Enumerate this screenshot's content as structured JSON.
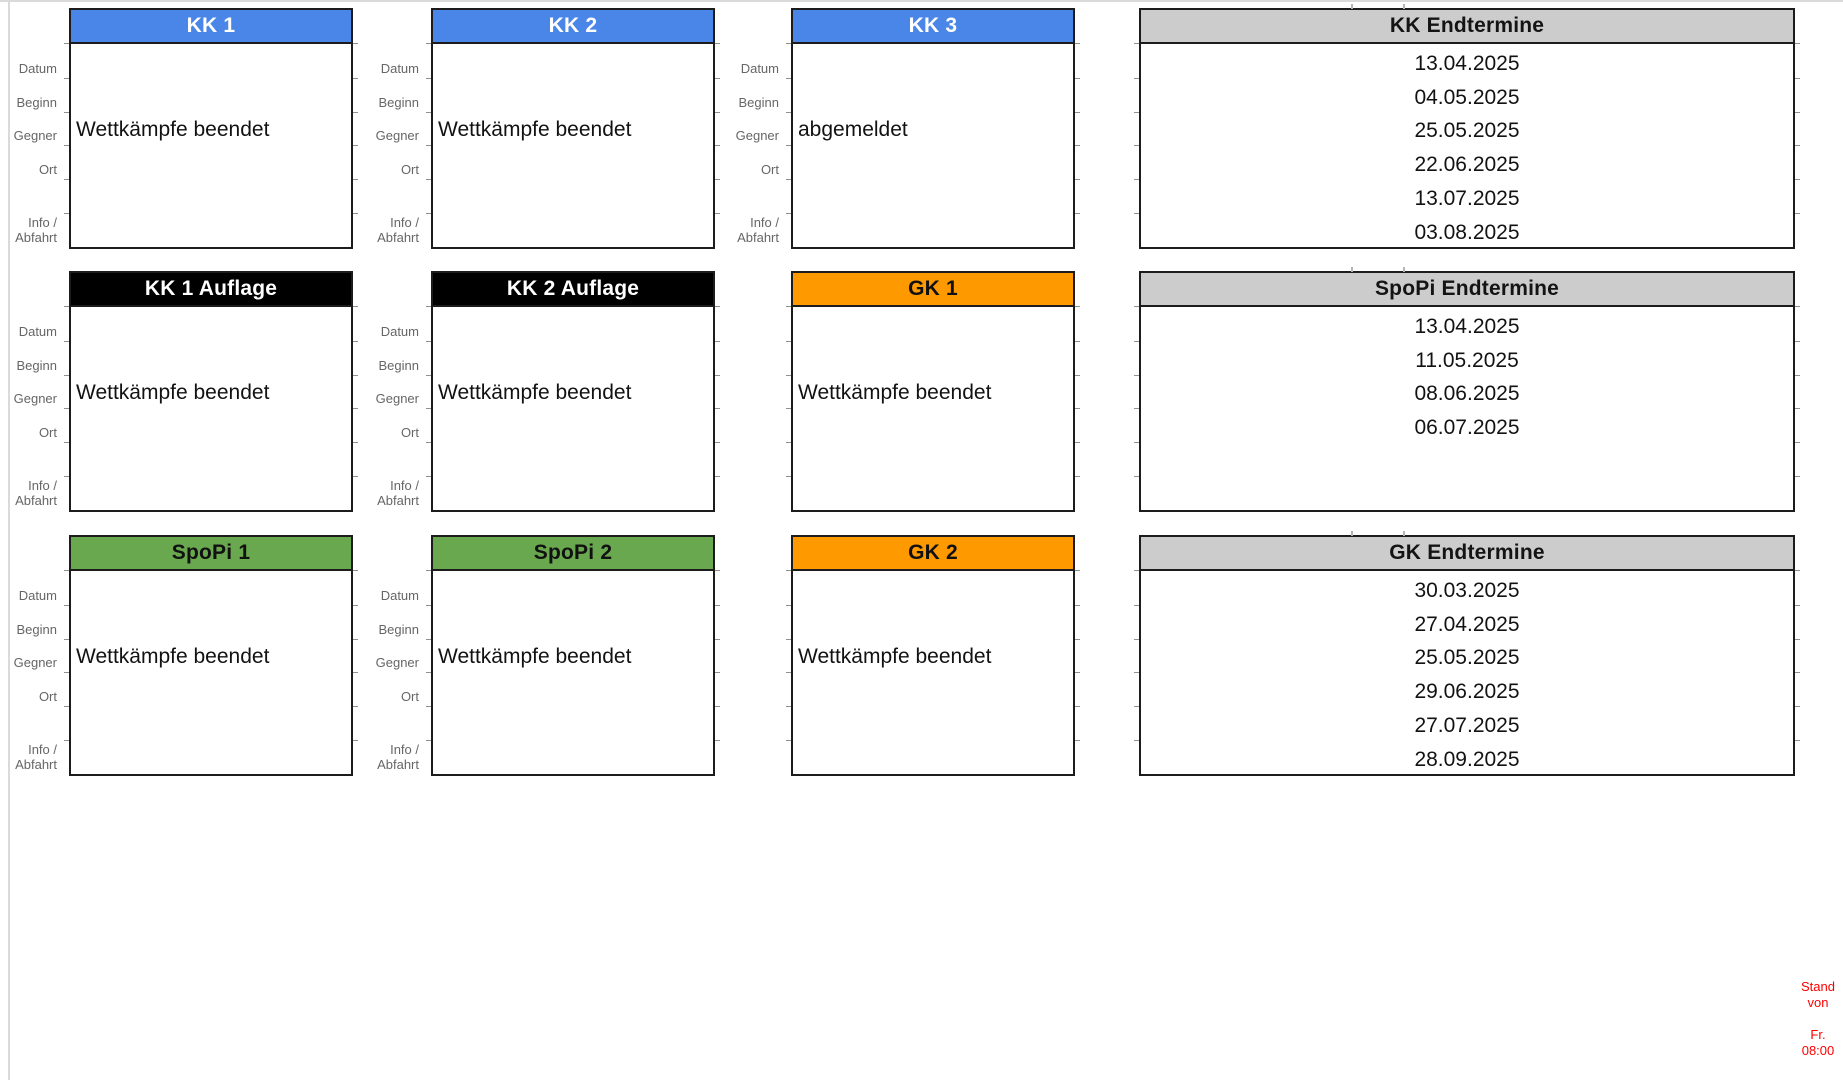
{
  "page": {
    "background": "#ffffff",
    "edge_line_color": "#dadada"
  },
  "colors": {
    "kk_header": "#4a86e8",
    "auflage_header": "#000000",
    "gk_header": "#ff9900",
    "spopi_header": "#6aa84f",
    "endtermine_header": "#cccccc",
    "card_border": "#1c1c1c",
    "note_red": "#ff0000",
    "label_gray": "#666666"
  },
  "row_labels": {
    "datum": "Datum",
    "beginn": "Beginn",
    "gegner": "Gegner",
    "ort": "Ort",
    "info": "Info /",
    "abfahrt": "Abfahrt"
  },
  "cards": [
    {
      "title": "KK 1",
      "status": "Wettkämpfe beendet",
      "header_color": "#4a86e8",
      "header_text_color": "#ffffff"
    },
    {
      "title": "KK 2",
      "status": "Wettkämpfe beendet",
      "header_color": "#4a86e8",
      "header_text_color": "#ffffff"
    },
    {
      "title": "KK 3",
      "status": "abgemeldet",
      "header_color": "#4a86e8",
      "header_text_color": "#ffffff"
    },
    {
      "title": "KK 1 Auflage",
      "status": "Wettkämpfe beendet",
      "header_color": "#000000",
      "header_text_color": "#ffffff"
    },
    {
      "title": "KK 2 Auflage",
      "status": "Wettkämpfe beendet",
      "header_color": "#000000",
      "header_text_color": "#ffffff"
    },
    {
      "title": "GK 1",
      "status": "Wettkämpfe beendet",
      "header_color": "#ff9900",
      "header_text_color": "#111111"
    },
    {
      "title": "SpoPi 1",
      "status": "Wettkämpfe beendet",
      "header_color": "#6aa84f",
      "header_text_color": "#111111"
    },
    {
      "title": "SpoPi 2",
      "status": "Wettkämpfe beendet",
      "header_color": "#6aa84f",
      "header_text_color": "#111111"
    },
    {
      "title": "GK 2",
      "status": "Wettkämpfe beendet",
      "header_color": "#ff9900",
      "header_text_color": "#111111"
    }
  ],
  "termine": [
    {
      "title": "KK Endtermine",
      "dates": [
        "13.04.2025",
        "04.05.2025",
        "25.05.2025",
        "22.06.2025",
        "13.07.2025",
        "03.08.2025"
      ]
    },
    {
      "title": "SpoPi Endtermine",
      "dates": [
        "13.04.2025",
        "11.05.2025",
        "08.06.2025",
        "06.07.2025"
      ]
    },
    {
      "title": "GK Endtermine",
      "dates": [
        "30.03.2025",
        "27.04.2025",
        "25.05.2025",
        "29.06.2025",
        "27.07.2025",
        "28.09.2025"
      ]
    }
  ],
  "stand_note": {
    "lines": [
      "Stand",
      "von",
      "Fr.",
      "08:00"
    ]
  }
}
